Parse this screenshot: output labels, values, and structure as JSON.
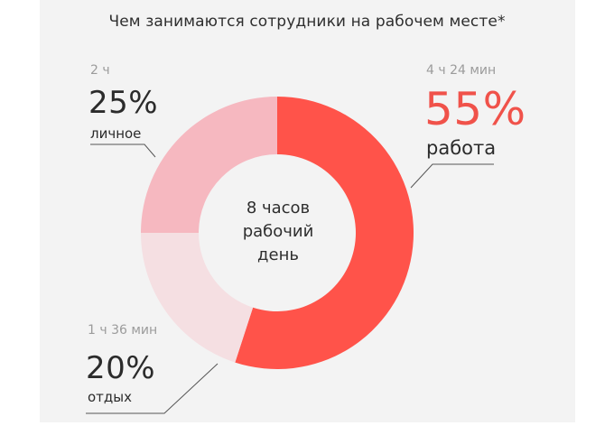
{
  "title": "Чем занимаются сотрудники на рабочем месте*",
  "center": {
    "line1": "8 часов",
    "line2": "рабочий",
    "line3": "день"
  },
  "labels": {
    "work": {
      "duration": "4 ч 24 мин",
      "percent": "55%",
      "name": "работа"
    },
    "personal": {
      "duration": "2 ч",
      "percent": "25%",
      "name": "личное"
    },
    "rest": {
      "duration": "1 ч 36 мин",
      "percent": "20%",
      "name": "отдых"
    }
  },
  "chart_data": {
    "type": "pie",
    "variant": "donut",
    "title": "Чем занимаются сотрудники на рабочем месте*",
    "center_text": "8 часов рабочий день",
    "slices": [
      {
        "label": "работа",
        "value": 55,
        "duration": "4 ч 24 мин",
        "color": "#ff534a"
      },
      {
        "label": "отдых",
        "value": 20,
        "duration": "1 ч 36 мин",
        "color": "#f5dfe2"
      },
      {
        "label": "личное",
        "value": 25,
        "duration": "2 ч",
        "color": "#f6b8c0"
      }
    ]
  }
}
